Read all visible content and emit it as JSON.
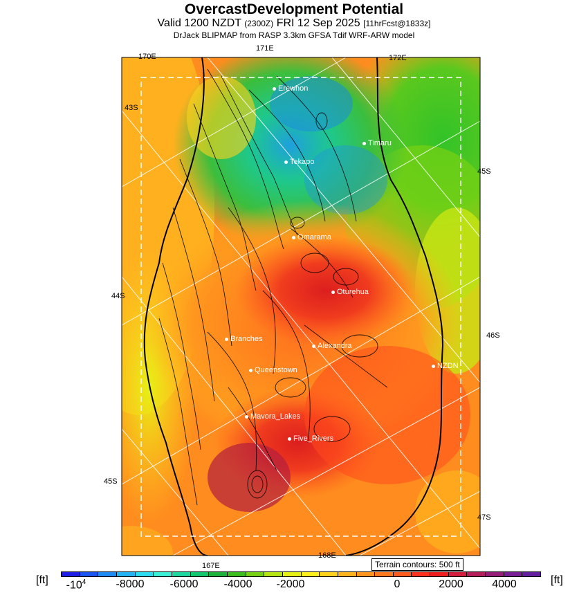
{
  "header": {
    "title": "OvercastDevelopment Potential",
    "valid_main": "Valid 1200 NZDT",
    "valid_utc": "(2300Z)",
    "valid_date": "FRI 12 Sep 2025",
    "forecast": "[11hrFcst@1833z]",
    "source": "DrJack BLIPMAP from RASP 3.3km GFSA Tdif WRF-ARW model"
  },
  "map": {
    "lon_labels": [
      "170E",
      "171E",
      "172E",
      "167E",
      "168E"
    ],
    "lat_labels": [
      "43S",
      "45S",
      "44S",
      "46S",
      "45S",
      "47S"
    ],
    "towns": [
      {
        "name": "Erewhon"
      },
      {
        "name": "Timaru"
      },
      {
        "name": "Tekapo"
      },
      {
        "name": "Omarama"
      },
      {
        "name": "Oturehua"
      },
      {
        "name": "Branches"
      },
      {
        "name": "Alexandra"
      },
      {
        "name": "Queenstown"
      },
      {
        "name": "NZDN"
      },
      {
        "name": "Mavora_Lakes"
      },
      {
        "name": "Five_Rivers"
      }
    ],
    "terrain_note": "Terrain contours: 500 ft"
  },
  "legend": {
    "unit_left": "[ft]",
    "unit_right": "[ft]",
    "tick_labels": [
      "-10",
      "-8000",
      "-6000",
      "-4000",
      "-2000",
      "0",
      "2000",
      "4000"
    ],
    "tick_exponent": "4",
    "colors": [
      "#1e1ee6",
      "#1a55f0",
      "#1f8cf5",
      "#22b4f5",
      "#2ddcf0",
      "#3cf0d8",
      "#1ed7a0",
      "#14c870",
      "#1eb43c",
      "#3cbe1e",
      "#78d214",
      "#b4e614",
      "#e6f014",
      "#fff01e",
      "#ffd21e",
      "#ffb41e",
      "#ff961e",
      "#ff781e",
      "#ff5a1e",
      "#ff321e",
      "#f01e1e",
      "#d21e3c",
      "#b41e5a",
      "#961e78",
      "#781e96",
      "#641ea0"
    ]
  }
}
